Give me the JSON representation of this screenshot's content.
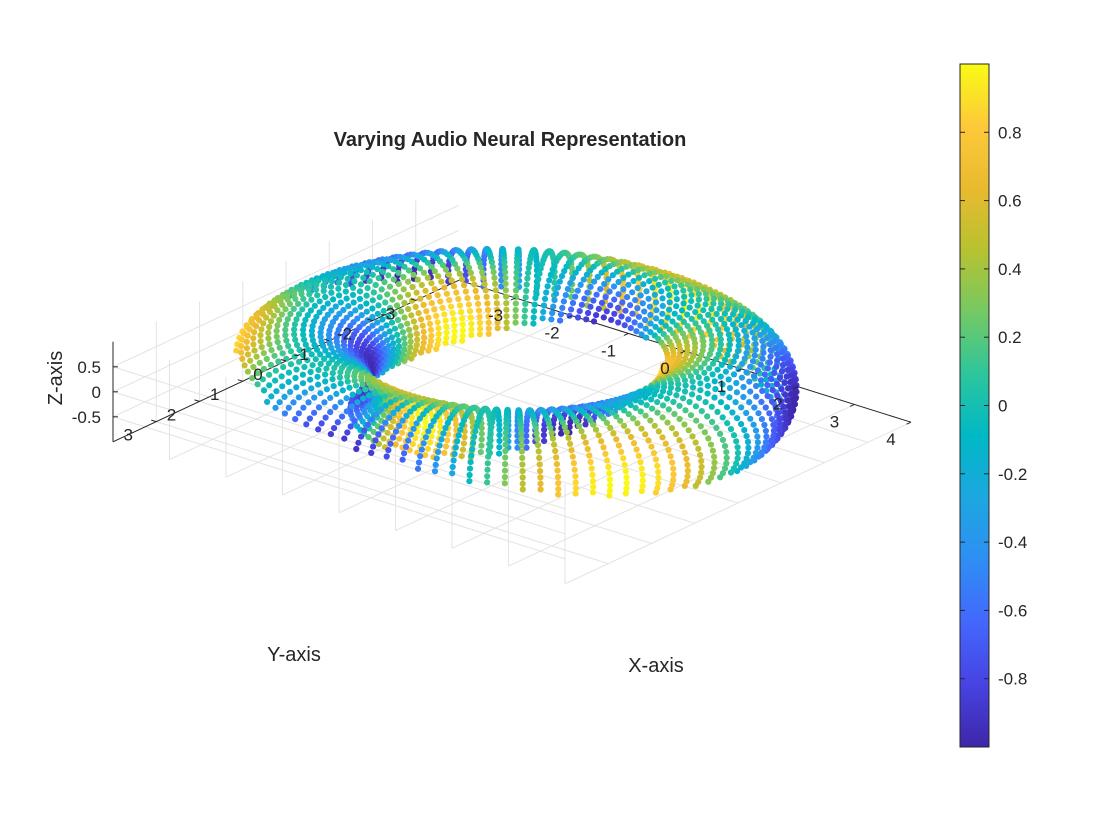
{
  "chart_data": {
    "type": "scatter3d",
    "title": "Varying Audio Neural Representation",
    "xlabel": "X-axis",
    "ylabel": "Y-axis",
    "zlabel": "Z-axis",
    "xlim": [
      -4,
      4
    ],
    "ylim": [
      -4,
      4
    ],
    "zlim": [
      -1,
      1
    ],
    "xticks": [
      -3,
      -2,
      -1,
      0,
      1,
      2,
      3,
      4
    ],
    "xtick_labels": [
      "-3",
      "-2",
      "-1",
      "0",
      "1",
      "2",
      "3",
      "4"
    ],
    "yticks": [
      -3,
      -2,
      -1,
      0,
      1,
      2,
      3
    ],
    "ytick_labels": [
      "-3",
      "-2",
      "-1",
      "0",
      "1",
      "2",
      "3"
    ],
    "zticks": [
      -0.5,
      0,
      0.5
    ],
    "ztick_labels": [
      "-0.5",
      "0",
      "0.5"
    ],
    "grid": true,
    "surface": {
      "shape": "torus",
      "major_radius": 3,
      "minor_radius": 1,
      "z_scale": 0.9,
      "u_samples": 100,
      "v_samples": 50,
      "color_value": "sin(3u) * cos(v)"
    },
    "colorbar": {
      "colormap": "parula",
      "clim": [
        -1,
        1
      ],
      "ticks": [
        -0.8,
        -0.6,
        -0.4,
        -0.2,
        0,
        0.2,
        0.4,
        0.6,
        0.8
      ],
      "tick_labels": [
        "-0.8",
        "-0.6",
        "-0.4",
        "-0.2",
        "0",
        "0.2",
        "0.4",
        "0.6",
        "0.8"
      ],
      "placement": "right"
    }
  },
  "colors": {
    "parula": [
      "#3e26a8",
      "#4743e2",
      "#4367fd",
      "#2f8ef4",
      "#1ca7e0",
      "#00b8c5",
      "#2dc59d",
      "#74c963",
      "#b7c231",
      "#e9ba2f",
      "#fdc93a",
      "#f9fb15"
    ]
  }
}
